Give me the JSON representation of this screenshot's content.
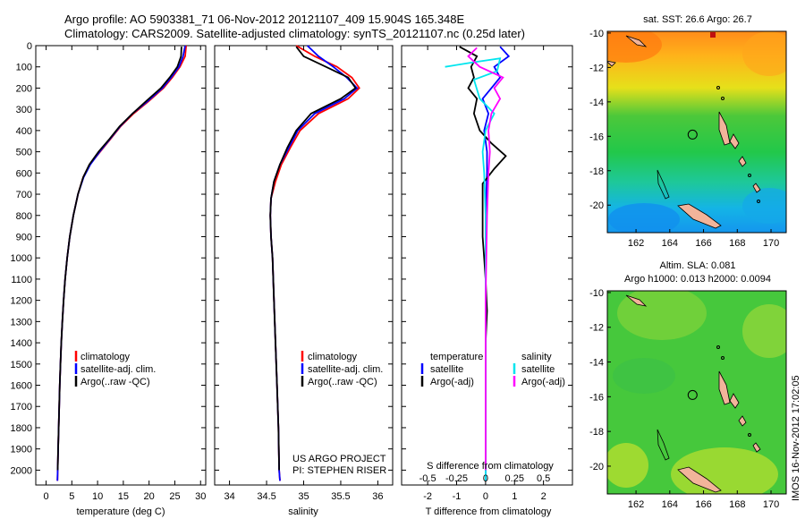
{
  "title": {
    "line1": "Argo profile: AO 5903381_71 06-Nov-2012 20121107_409 15.904S 165.348E",
    "line2": "Climatology: CARS2009. Satellite-adjusted climatology: synTS_20121107.nc (0.25d later)"
  },
  "colors": {
    "climatology": "#ff0000",
    "satellite_adj": "#0000ff",
    "argo": "#000000",
    "sat_salinity": "#00e5ee",
    "argo_salinity": "#ff00ff"
  },
  "project": {
    "line1": "US ARGO PROJECT",
    "line2": "PI: STEPHEN RISER"
  },
  "stamp": "IMOS 16-Nov-2012 17:02:05",
  "chart_data": [
    {
      "type": "line",
      "name": "temperature-profile",
      "xlabel": "temperature (deg C)",
      "ylabel": "",
      "xlim": [
        -2,
        31
      ],
      "ylim": [
        2070,
        0
      ],
      "xticks": [
        0,
        5,
        10,
        15,
        20,
        25,
        30
      ],
      "yticks": [
        0,
        100,
        200,
        300,
        400,
        500,
        600,
        700,
        800,
        900,
        1000,
        1100,
        1200,
        1300,
        1400,
        1500,
        1600,
        1700,
        1800,
        1900,
        2000
      ],
      "legend": [
        "climatology",
        "satellite-adj. clim.",
        "Argo(..raw -QC)"
      ],
      "series": [
        {
          "name": "climatology",
          "color": "#ff0000",
          "points": [
            [
              27.2,
              0
            ],
            [
              27.0,
              50
            ],
            [
              26.0,
              100
            ],
            [
              24.5,
              150
            ],
            [
              22.8,
              200
            ],
            [
              20.0,
              260
            ],
            [
              17.0,
              320
            ],
            [
              14.5,
              380
            ],
            [
              12.5,
              440
            ],
            [
              10.5,
              500
            ],
            [
              8.5,
              560
            ],
            [
              7.2,
              620
            ],
            [
              6.2,
              700
            ],
            [
              5.3,
              800
            ],
            [
              4.6,
              900
            ],
            [
              4.1,
              1000
            ],
            [
              3.7,
              1100
            ],
            [
              3.4,
              1200
            ],
            [
              3.15,
              1300
            ],
            [
              2.95,
              1400
            ],
            [
              2.8,
              1500
            ],
            [
              2.65,
              1600
            ],
            [
              2.55,
              1700
            ],
            [
              2.45,
              1800
            ],
            [
              2.35,
              1900
            ],
            [
              2.25,
              2000
            ],
            [
              2.2,
              2050
            ]
          ]
        },
        {
          "name": "satellite-adj. clim.",
          "color": "#0000ff",
          "points": [
            [
              27.0,
              0
            ],
            [
              26.6,
              50
            ],
            [
              25.8,
              100
            ],
            [
              24.3,
              150
            ],
            [
              22.6,
              200
            ],
            [
              19.8,
              260
            ],
            [
              16.8,
              320
            ],
            [
              14.4,
              380
            ],
            [
              12.4,
              440
            ],
            [
              10.4,
              500
            ],
            [
              8.6,
              560
            ],
            [
              7.3,
              620
            ],
            [
              6.2,
              700
            ],
            [
              5.3,
              800
            ],
            [
              4.6,
              900
            ],
            [
              4.1,
              1000
            ],
            [
              3.7,
              1100
            ],
            [
              3.4,
              1200
            ],
            [
              3.15,
              1300
            ],
            [
              2.95,
              1400
            ],
            [
              2.8,
              1500
            ],
            [
              2.65,
              1600
            ],
            [
              2.55,
              1700
            ],
            [
              2.45,
              1800
            ],
            [
              2.35,
              1900
            ],
            [
              2.25,
              2000
            ],
            [
              2.2,
              2050
            ]
          ]
        },
        {
          "name": "Argo(..raw -QC)",
          "color": "#000000",
          "points": [
            [
              26.3,
              5
            ],
            [
              26.2,
              50
            ],
            [
              25.5,
              100
            ],
            [
              24.0,
              150
            ],
            [
              22.3,
              200
            ],
            [
              19.5,
              260
            ],
            [
              16.8,
              320
            ],
            [
              14.3,
              380
            ],
            [
              12.3,
              440
            ],
            [
              10.2,
              500
            ],
            [
              8.4,
              560
            ],
            [
              7.2,
              620
            ],
            [
              6.2,
              700
            ],
            [
              5.3,
              800
            ],
            [
              4.6,
              900
            ],
            [
              4.1,
              1000
            ],
            [
              3.7,
              1100
            ],
            [
              3.4,
              1200
            ],
            [
              3.15,
              1300
            ],
            [
              2.95,
              1400
            ],
            [
              2.8,
              1500
            ],
            [
              2.65,
              1600
            ],
            [
              2.55,
              1700
            ],
            [
              2.45,
              1800
            ],
            [
              2.35,
              1900
            ],
            [
              2.25,
              2000
            ]
          ]
        }
      ]
    },
    {
      "type": "line",
      "name": "salinity-profile",
      "xlabel": "salinity",
      "xlim": [
        33.8,
        36.2
      ],
      "ylim": [
        2070,
        0
      ],
      "xticks": [
        34,
        34.5,
        35,
        35.5,
        36
      ],
      "legend": [
        "climatology",
        "satellite-adj. clim.",
        "Argo(..raw -QC)"
      ],
      "series": [
        {
          "name": "climatology",
          "color": "#ff0000",
          "points": [
            [
              34.9,
              0
            ],
            [
              35.15,
              50
            ],
            [
              35.45,
              100
            ],
            [
              35.65,
              150
            ],
            [
              35.75,
              200
            ],
            [
              35.6,
              250
            ],
            [
              35.2,
              320
            ],
            [
              34.95,
              400
            ],
            [
              34.82,
              480
            ],
            [
              34.7,
              560
            ],
            [
              34.62,
              640
            ],
            [
              34.56,
              720
            ],
            [
              34.55,
              800
            ],
            [
              34.56,
              900
            ],
            [
              34.58,
              1000
            ],
            [
              34.6,
              1200
            ],
            [
              34.62,
              1400
            ],
            [
              34.64,
              1600
            ],
            [
              34.66,
              1800
            ],
            [
              34.67,
              2000
            ],
            [
              34.68,
              2050
            ]
          ]
        },
        {
          "name": "satellite-adj. clim.",
          "color": "#0000ff",
          "points": [
            [
              35.05,
              0
            ],
            [
              35.2,
              50
            ],
            [
              35.4,
              100
            ],
            [
              35.58,
              150
            ],
            [
              35.72,
              200
            ],
            [
              35.55,
              250
            ],
            [
              35.15,
              320
            ],
            [
              34.92,
              400
            ],
            [
              34.8,
              480
            ],
            [
              34.68,
              560
            ],
            [
              34.6,
              640
            ],
            [
              34.56,
              720
            ],
            [
              34.55,
              800
            ],
            [
              34.56,
              900
            ],
            [
              34.58,
              1000
            ],
            [
              34.6,
              1200
            ],
            [
              34.62,
              1400
            ],
            [
              34.64,
              1600
            ],
            [
              34.66,
              1800
            ],
            [
              34.67,
              2000
            ],
            [
              34.68,
              2050
            ]
          ]
        },
        {
          "name": "Argo(..raw -QC)",
          "color": "#000000",
          "points": [
            [
              34.9,
              5
            ],
            [
              35.0,
              50
            ],
            [
              35.3,
              100
            ],
            [
              35.6,
              150
            ],
            [
              35.7,
              200
            ],
            [
              35.5,
              250
            ],
            [
              35.1,
              320
            ],
            [
              34.9,
              400
            ],
            [
              34.78,
              480
            ],
            [
              34.68,
              560
            ],
            [
              34.6,
              640
            ],
            [
              34.56,
              720
            ],
            [
              34.55,
              800
            ],
            [
              34.56,
              900
            ],
            [
              34.58,
              1000
            ],
            [
              34.6,
              1200
            ],
            [
              34.62,
              1400
            ],
            [
              34.64,
              1600
            ],
            [
              34.66,
              1800
            ],
            [
              34.67,
              2000
            ]
          ]
        }
      ]
    },
    {
      "type": "line",
      "name": "difference-profile",
      "xlabel": "T difference from climatology",
      "xlabel_top": "S difference from climatology",
      "xlim": [
        -2.9,
        3.0
      ],
      "ylim": [
        2070,
        0
      ],
      "xticks": [
        -2,
        -1,
        0,
        1,
        2
      ],
      "s_ticks": [
        [
          "-0.5",
          -2
        ],
        [
          "-0.25",
          -1
        ],
        [
          "0",
          0
        ],
        [
          "0.25",
          1
        ],
        [
          "0.5",
          2
        ]
      ],
      "legend_headers": [
        "temperature",
        "salinity"
      ],
      "legend": [
        "satellite",
        "Argo(-adj)",
        "satellite",
        "Argo(-adj)"
      ],
      "series": [
        {
          "name": "temperature satellite",
          "color": "#0000ff",
          "points": [
            [
              0.5,
              5
            ],
            [
              0.8,
              50
            ],
            [
              0.3,
              100
            ],
            [
              0.5,
              150
            ],
            [
              0.2,
              200
            ],
            [
              -0.1,
              250
            ],
            [
              0.1,
              320
            ],
            [
              -0.05,
              400
            ],
            [
              0.05,
              500
            ],
            [
              0.05,
              600
            ],
            [
              0.0,
              800
            ],
            [
              0.0,
              1200
            ],
            [
              0.0,
              2050
            ]
          ]
        },
        {
          "name": "temperature Argo(-adj)",
          "color": "#000000",
          "points": [
            [
              -0.9,
              5
            ],
            [
              -0.3,
              50
            ],
            [
              -0.5,
              100
            ],
            [
              -0.4,
              150
            ],
            [
              -0.6,
              200
            ],
            [
              -0.3,
              250
            ],
            [
              -0.4,
              320
            ],
            [
              -0.2,
              400
            ],
            [
              0.2,
              460
            ],
            [
              0.7,
              520
            ],
            [
              0.3,
              580
            ],
            [
              -0.1,
              650
            ],
            [
              -0.1,
              800
            ],
            [
              -0.1,
              900
            ],
            [
              -0.05,
              1000
            ],
            [
              0.0,
              1100
            ],
            [
              0.05,
              1250
            ],
            [
              0.0,
              1400
            ],
            [
              0.0,
              2000
            ]
          ]
        },
        {
          "name": "salinity satellite",
          "color": "#00e5ee",
          "points": [
            [
              -1.4,
              100
            ],
            [
              -0.5,
              80
            ],
            [
              0.5,
              60
            ],
            [
              0.4,
              120
            ],
            [
              -0.4,
              160
            ],
            [
              -0.2,
              250
            ],
            [
              0.3,
              320
            ],
            [
              0.0,
              400
            ],
            [
              -0.1,
              500
            ],
            [
              -0.05,
              600
            ],
            [
              0.0,
              800
            ],
            [
              0.0,
              1200
            ],
            [
              0.0,
              2050
            ]
          ]
        },
        {
          "name": "salinity Argo(-adj)",
          "color": "#ff00ff",
          "points": [
            [
              -0.3,
              10
            ],
            [
              -0.6,
              50
            ],
            [
              -0.2,
              100
            ],
            [
              0.6,
              150
            ],
            [
              0.3,
              200
            ],
            [
              0.5,
              250
            ],
            [
              0.2,
              320
            ],
            [
              0.1,
              400
            ],
            [
              0.15,
              500
            ],
            [
              0.1,
              600
            ],
            [
              0.05,
              800
            ],
            [
              0.0,
              1200
            ],
            [
              0.0,
              2000
            ]
          ]
        }
      ]
    },
    {
      "type": "heatmap",
      "name": "sst-map",
      "title": "sat. SST: 26.6  Argo: 26.7",
      "xlim": [
        160.3,
        170.9
      ],
      "ylim": [
        -21.6,
        -9.9
      ],
      "xticks": [
        162,
        164,
        166,
        168,
        170
      ],
      "yticks": [
        -10,
        -12,
        -14,
        -16,
        -18,
        -20
      ],
      "marker": [
        165.35,
        -15.9
      ]
    },
    {
      "type": "heatmap",
      "name": "sla-map",
      "title": "Altim. SLA: 0.081",
      "subtitle": "Argo h1000: 0.013 h2000: 0.0094",
      "xlim": [
        160.3,
        170.9
      ],
      "ylim": [
        -21.6,
        -9.9
      ],
      "xticks": [
        162,
        164,
        166,
        168,
        170
      ],
      "yticks": [
        -10,
        -12,
        -14,
        -16,
        -18,
        -20
      ],
      "marker": [
        165.35,
        -15.9
      ]
    }
  ]
}
